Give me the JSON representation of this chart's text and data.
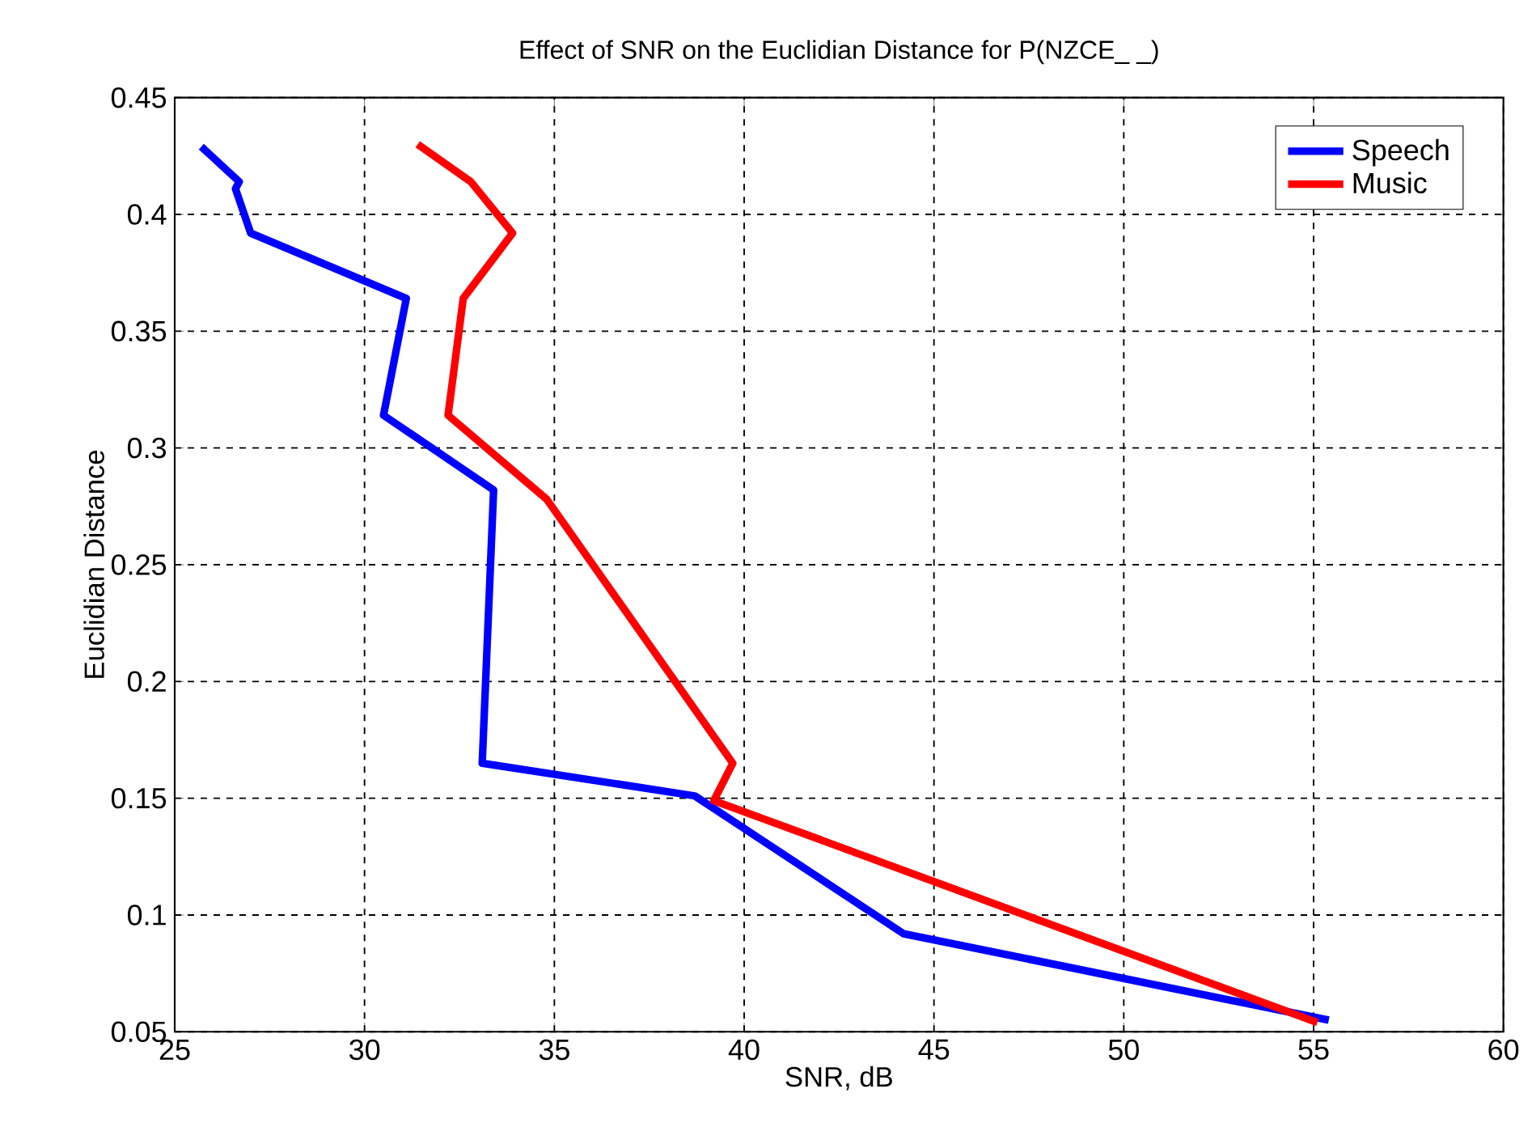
{
  "chart_data": {
    "type": "line",
    "title": "Effect of SNR on the Euclidian Distance for P(NZCE_ _)",
    "xlabel": "SNR, dB",
    "ylabel": "Euclidian Distance",
    "xlim": [
      25,
      60
    ],
    "ylim": [
      0.05,
      0.45
    ],
    "xticks": [
      25,
      30,
      35,
      40,
      45,
      50,
      55,
      60
    ],
    "yticks": [
      0.05,
      0.1,
      0.15,
      0.2,
      0.25,
      0.3,
      0.35,
      0.4,
      0.45
    ],
    "grid": true,
    "legend": "top right",
    "line_style": "solid",
    "marker": "none",
    "series": [
      {
        "name": "Speech",
        "color": "#0000ff",
        "x": [
          25.7,
          26.7,
          26.6,
          27.0,
          31.1,
          30.5,
          33.4,
          33.1,
          38.7,
          44.2,
          55.4
        ],
        "values": [
          0.429,
          0.414,
          0.411,
          0.392,
          0.364,
          0.314,
          0.282,
          0.165,
          0.151,
          0.092,
          0.055
        ]
      },
      {
        "name": "Music",
        "color": "#ff0000",
        "x": [
          31.4,
          32.8,
          33.9,
          32.6,
          32.2,
          34.8,
          39.7,
          39.2,
          55.1
        ],
        "values": [
          0.43,
          0.414,
          0.392,
          0.364,
          0.314,
          0.278,
          0.165,
          0.149,
          0.054
        ]
      }
    ]
  }
}
